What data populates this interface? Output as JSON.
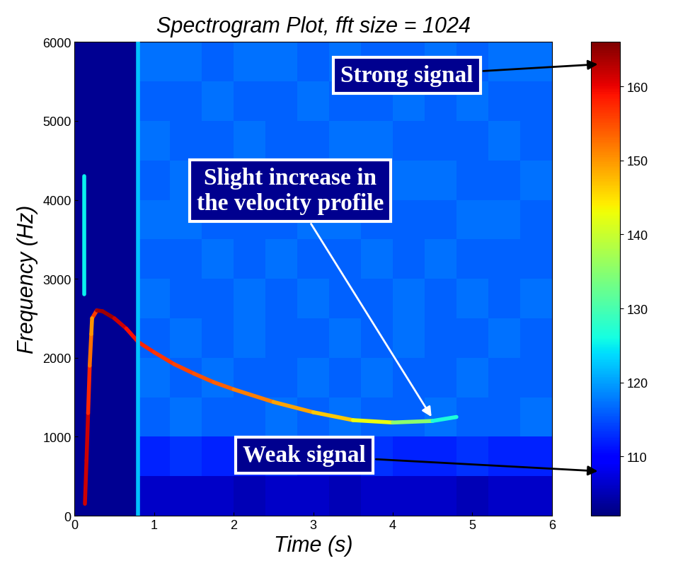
{
  "chart_data": {
    "type": "spectrogram",
    "title": "Spectrogram Plot, fft size = 1024",
    "x_label": "Time (s)",
    "y_label": "Frequency (Hz)",
    "xlim": [
      0,
      6
    ],
    "xticks": [
      0,
      1,
      2,
      3,
      4,
      5,
      6
    ],
    "ylim": [
      0,
      6000
    ],
    "yticks": [
      0,
      1000,
      2000,
      3000,
      4000,
      5000,
      6000
    ],
    "colorbar": {
      "range": [
        102,
        166
      ],
      "ticks": [
        110,
        120,
        130,
        140,
        150,
        160
      ]
    },
    "cells": {
      "x": [
        0,
        0.4,
        0.8,
        1.2,
        1.6,
        2.0,
        2.4,
        2.8,
        3.2,
        3.6,
        4.0,
        4.4,
        4.8,
        5.2,
        5.6,
        6.0
      ],
      "y": [
        0,
        500,
        1000,
        1500,
        2000,
        2500,
        3000,
        3500,
        4000,
        4500,
        5000,
        5500,
        6000
      ],
      "values": [
        [
          103,
          103,
          106,
          106,
          106,
          105,
          106,
          106,
          105,
          106,
          106,
          106,
          105,
          106,
          106
        ],
        [
          103,
          103,
          112,
          113,
          112,
          112,
          113,
          112,
          112,
          113,
          112,
          112,
          113,
          112,
          112
        ],
        [
          103,
          103,
          116,
          117,
          116,
          116,
          117,
          116,
          117,
          116,
          116,
          117,
          116,
          116,
          117
        ],
        [
          103,
          103,
          117,
          116,
          117,
          116,
          116,
          117,
          116,
          117,
          116,
          116,
          117,
          116,
          116
        ],
        [
          103,
          103,
          116,
          117,
          116,
          117,
          116,
          116,
          117,
          116,
          117,
          116,
          116,
          117,
          116
        ],
        [
          103,
          103,
          117,
          116,
          116,
          117,
          116,
          117,
          116,
          116,
          117,
          116,
          117,
          116,
          117
        ],
        [
          103,
          103,
          116,
          116,
          117,
          116,
          117,
          116,
          116,
          117,
          116,
          117,
          116,
          116,
          116
        ],
        [
          103,
          103,
          117,
          117,
          116,
          116,
          116,
          117,
          117,
          116,
          116,
          116,
          117,
          117,
          116
        ],
        [
          103,
          103,
          116,
          117,
          117,
          116,
          117,
          116,
          116,
          116,
          117,
          117,
          116,
          116,
          117
        ],
        [
          103,
          103,
          117,
          116,
          116,
          117,
          116,
          116,
          117,
          117,
          116,
          116,
          116,
          117,
          116
        ],
        [
          103,
          103,
          116,
          116,
          117,
          116,
          116,
          117,
          116,
          116,
          117,
          116,
          117,
          116,
          116
        ],
        [
          103,
          103,
          117,
          117,
          116,
          117,
          117,
          116,
          117,
          116,
          116,
          117,
          116,
          117,
          117
        ]
      ]
    },
    "series": [
      {
        "x": [
          0.22,
          0.28,
          0.35,
          0.5,
          0.65,
          0.8,
          1.0,
          1.25,
          1.5,
          1.75,
          2.0,
          2.5,
          3.0,
          3.5,
          4.0,
          4.5,
          4.8
        ],
        "y": [
          2500,
          2600,
          2590,
          2500,
          2370,
          2200,
          2070,
          1920,
          1800,
          1690,
          1600,
          1440,
          1310,
          1210,
          1180,
          1200,
          1250
        ],
        "values": [
          150,
          162,
          165,
          163,
          160,
          158,
          157,
          156,
          155,
          154,
          153,
          150,
          148,
          145,
          140,
          130,
          123
        ]
      },
      {
        "x": [
          0.13,
          0.15,
          0.17,
          0.19,
          0.21,
          0.22
        ],
        "y": [
          150,
          700,
          1300,
          1900,
          2300,
          2500
        ],
        "values": [
          160,
          163,
          160,
          155,
          150,
          150
        ]
      },
      {
        "x": [
          0.12,
          0.12
        ],
        "y": [
          2800,
          4300
        ],
        "values": [
          125,
          125
        ]
      },
      {
        "x": [
          0.8,
          0.8
        ],
        "y": [
          0,
          6000
        ],
        "values": [
          122,
          122
        ]
      }
    ],
    "annotations": [
      {
        "text": "Strong signal",
        "colorbar_value": 163
      },
      {
        "text": "Slight increase in\nthe velocity profile",
        "x": 4.5,
        "y": 1230
      },
      {
        "text": "Weak signal",
        "colorbar_value": 108
      }
    ]
  }
}
